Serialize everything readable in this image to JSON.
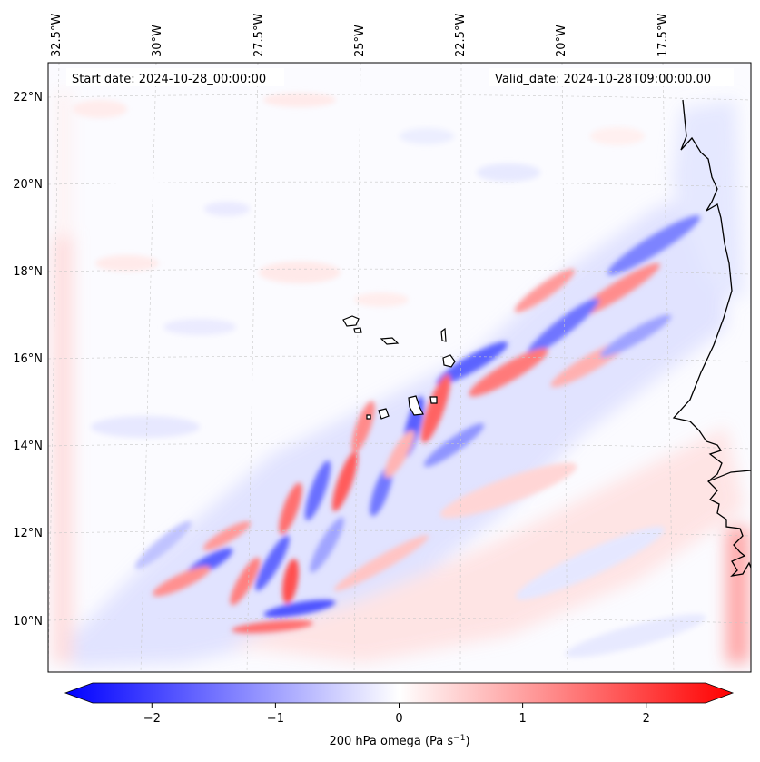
{
  "map": {
    "start_date_text": "Start date: 2024-10-28_00:00:00",
    "valid_date_text": "Valid_date: 2024-10-28T09:00:00.00",
    "lon_labels": [
      "32.5°W",
      "30°W",
      "27.5°W",
      "25°W",
      "22.5°W",
      "20°W",
      "17.5°W"
    ],
    "lat_labels": [
      "22°N",
      "20°N",
      "18°N",
      "16°N",
      "14°N",
      "12°N",
      "10°N"
    ],
    "colors": {
      "negative": "#0000ff",
      "zero": "#ffffff",
      "positive": "#ff0000",
      "coast": "#000000",
      "grid": "#bbbbbb"
    }
  },
  "colorbar": {
    "title_prefix": "200 hPa omega (Pa s",
    "title_exp": "−1",
    "title_suffix": ")",
    "range": [
      -2.7,
      2.7
    ],
    "ticks": [
      {
        "value": -2,
        "label": "−2"
      },
      {
        "value": -1,
        "label": "−1"
      },
      {
        "value": 0,
        "label": "0"
      },
      {
        "value": 1,
        "label": "1"
      },
      {
        "value": 2,
        "label": "2"
      }
    ]
  }
}
